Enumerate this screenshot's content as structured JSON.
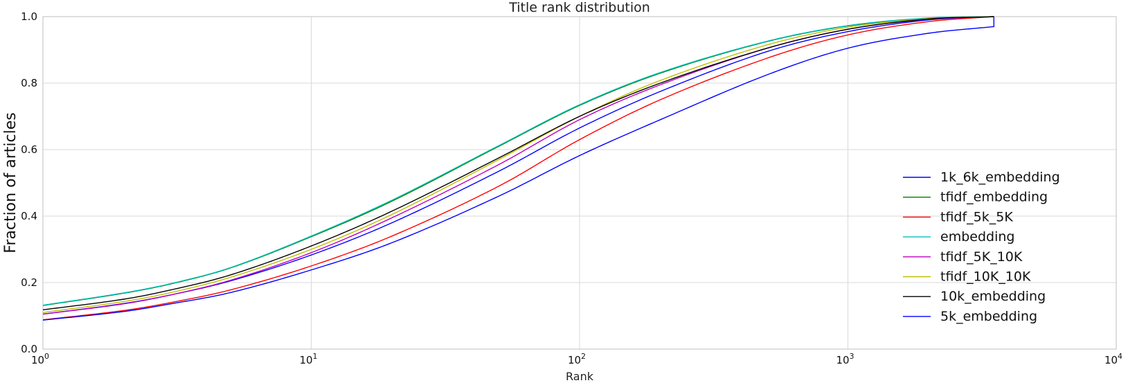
{
  "chart_data": {
    "type": "line",
    "title": "Title rank distribution",
    "xlabel": "Rank",
    "ylabel": "Fraction of articles",
    "xscale": "log",
    "xlim": [
      1,
      10000
    ],
    "ylim": [
      0.0,
      1.0
    ],
    "xticks": [
      {
        "value": 1,
        "base": "10",
        "exp": "0"
      },
      {
        "value": 10,
        "base": "10",
        "exp": "1"
      },
      {
        "value": 100,
        "base": "10",
        "exp": "2"
      },
      {
        "value": 1000,
        "base": "10",
        "exp": "3"
      },
      {
        "value": 10000,
        "base": "10",
        "exp": "4"
      }
    ],
    "yticks": [
      "0.0",
      "0.2",
      "0.4",
      "0.6",
      "0.8",
      "1.0"
    ],
    "grid": true,
    "legend_position": "lower-right",
    "x": [
      1,
      2,
      3,
      5,
      10,
      20,
      50,
      100,
      200,
      500,
      1000,
      2000,
      3500
    ],
    "series": [
      {
        "name": "1k_6k_embedding",
        "color": "#0000ff",
        "values": [
          0.105,
          0.137,
          0.163,
          0.205,
          0.283,
          0.38,
          0.535,
          0.665,
          0.775,
          0.895,
          0.955,
          0.99,
          1.0
        ]
      },
      {
        "name": "tfidf_embedding",
        "color": "#008000",
        "values": [
          0.131,
          0.168,
          0.196,
          0.244,
          0.338,
          0.445,
          0.61,
          0.733,
          0.83,
          0.925,
          0.972,
          0.995,
          1.0
        ]
      },
      {
        "name": "tfidf_5k_5K",
        "color": "#ff0000",
        "values": [
          0.088,
          0.116,
          0.14,
          0.178,
          0.25,
          0.34,
          0.49,
          0.63,
          0.75,
          0.875,
          0.945,
          0.985,
          1.0
        ]
      },
      {
        "name": "embedding",
        "color": "#00bfbf",
        "values": [
          0.132,
          0.169,
          0.197,
          0.245,
          0.34,
          0.448,
          0.612,
          0.735,
          0.832,
          0.926,
          0.973,
          0.996,
          1.0
        ]
      },
      {
        "name": "tfidf_5K_10K",
        "color": "#bf00bf",
        "values": [
          0.105,
          0.136,
          0.163,
          0.207,
          0.29,
          0.395,
          0.555,
          0.69,
          0.795,
          0.905,
          0.962,
          0.992,
          1.0
        ]
      },
      {
        "name": "tfidf_10K_10K",
        "color": "#bfbf00",
        "values": [
          0.11,
          0.143,
          0.17,
          0.216,
          0.3,
          0.405,
          0.57,
          0.7,
          0.808,
          0.915,
          0.968,
          0.994,
          1.0
        ]
      },
      {
        "name": "10k_embedding",
        "color": "#000000",
        "values": [
          0.118,
          0.15,
          0.178,
          0.223,
          0.31,
          0.415,
          0.575,
          0.7,
          0.8,
          0.905,
          0.962,
          0.993,
          1.0
        ]
      },
      {
        "name": "5k_embedding",
        "color": "#0000ff",
        "values": [
          0.087,
          0.113,
          0.136,
          0.17,
          0.238,
          0.32,
          0.46,
          0.582,
          0.69,
          0.825,
          0.905,
          0.95,
          0.97
        ]
      }
    ]
  }
}
